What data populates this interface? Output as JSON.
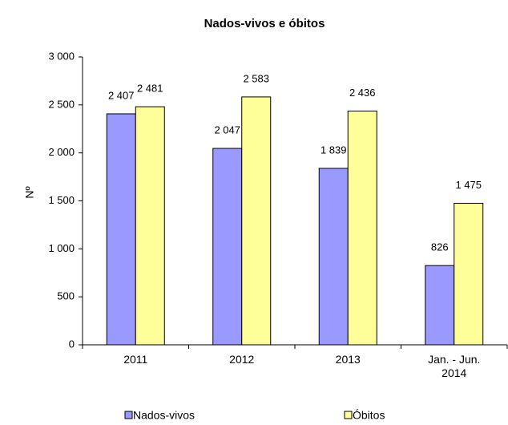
{
  "chart_data": {
    "type": "bar",
    "title": "Nados-vivos e óbitos",
    "y_label": "Nº",
    "categories": [
      "2011",
      "2012",
      "2013",
      "Jan. - Jun. 2014"
    ],
    "series": [
      {
        "name": "Nados-vivos",
        "color": "#9999ff",
        "values": [
          2407,
          2047,
          1839,
          826
        ],
        "value_labels": [
          "2 407",
          "2 047",
          "1 839",
          "826"
        ]
      },
      {
        "name": "Óbitos",
        "color": "#ffff99",
        "values": [
          2481,
          2583,
          2436,
          1475
        ],
        "value_labels": [
          "2 481",
          "2 583",
          "2 436",
          "1 475"
        ]
      }
    ],
    "ylim": [
      0,
      3000
    ],
    "yticks": [
      0,
      500,
      {
        "value": 1000,
        "label": "1 000"
      },
      {
        "value": 1500,
        "label": "1 500"
      },
      {
        "value": 2000,
        "label": "2 000"
      },
      {
        "value": 2500,
        "label": "2 500"
      },
      {
        "value": 3000,
        "label": "3 000"
      }
    ],
    "grid": false
  }
}
